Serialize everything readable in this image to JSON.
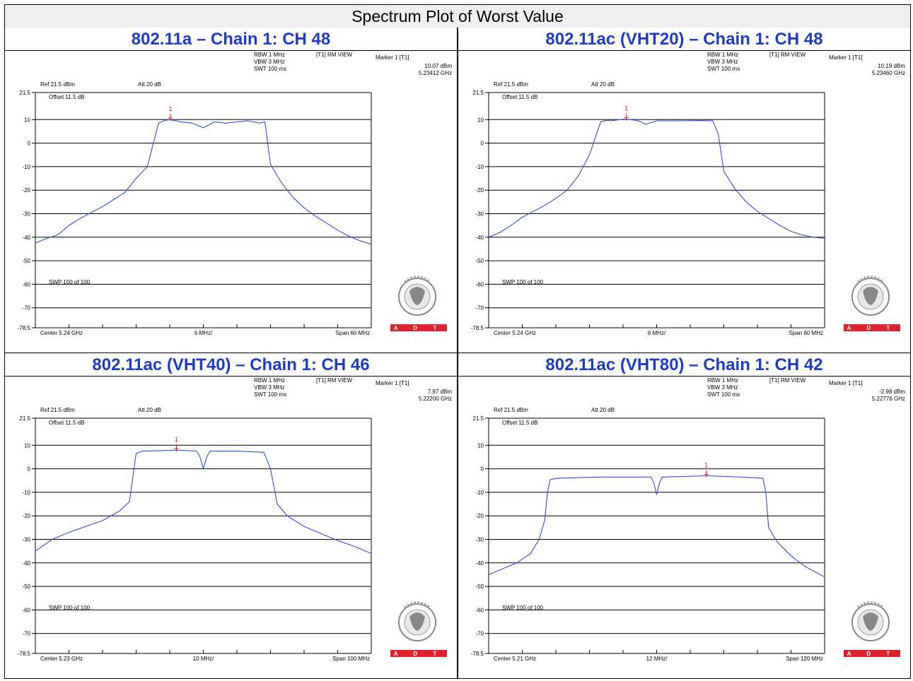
{
  "page_title": "Spectrum Plot of Worst Value",
  "logo_text": "A D T",
  "chart_data": [
    {
      "type": "line",
      "title": "802.11a – Chain 1: CH 48",
      "rbw": "RBW 1 MHz",
      "vbw": "VBW 3 MHz",
      "swt": "SWT 100 ms",
      "trace_view": "[T1] RM VIEW",
      "marker_label": "Marker 1 [T1]",
      "marker_level": "10.07 dBm",
      "marker_freq": "5.23412 GHz",
      "ref": "Ref 21.5 dBm",
      "att": "Att  20 dB",
      "offset": "Offset 11.5 dB",
      "sweep": "SWP 100 of 100",
      "center": "Center 5.24 GHz",
      "per_div": "6 MHz/",
      "span": "Span 60 MHz",
      "y_ticks": [
        "21.5",
        "10",
        "0",
        "-10",
        "-20",
        "-30",
        "-40",
        "-50",
        "-60",
        "-70",
        "-78.5"
      ],
      "ylim": [
        -78.5,
        21.5
      ],
      "x_range_mhz": [
        5210,
        5270
      ],
      "marker_x_mhz": 5234.12,
      "marker_y_dbm": 10.07,
      "marker_num": "1",
      "x_mhz": [
        5210,
        5212,
        5214,
        5216,
        5218,
        5220,
        5222,
        5224,
        5226,
        5228,
        5230,
        5232,
        5233,
        5234,
        5236,
        5238,
        5240,
        5242,
        5244,
        5246,
        5248,
        5250,
        5251,
        5252,
        5254,
        5256,
        5258,
        5260,
        5262,
        5264,
        5266,
        5268,
        5270
      ],
      "y_dbm": [
        -42.5,
        -40.5,
        -39,
        -35,
        -32,
        -29.5,
        -27,
        -24,
        -21,
        -15,
        -10,
        8.5,
        9.5,
        10.07,
        9,
        8.5,
        6.5,
        9,
        8.5,
        9,
        9.5,
        8.5,
        9,
        -9,
        -17,
        -23,
        -27.5,
        -31,
        -34,
        -37,
        -39.5,
        -41.5,
        -43
      ]
    },
    {
      "type": "line",
      "title": "802.11ac (VHT20) – Chain 1: CH 48",
      "rbw": "RBW 1 MHz",
      "vbw": "VBW 3 MHz",
      "swt": "SWT 100 ms",
      "trace_view": "[T1] RM VIEW",
      "marker_label": "Marker 1 [T1]",
      "marker_level": "10.19 dBm",
      "marker_freq": "5.23460 GHz",
      "ref": "Ref 21.5 dBm",
      "att": "Att  20 dB",
      "offset": "Offset 11.5 dB",
      "sweep": "SWP 100 of 100",
      "center": "Center 5.24 GHz",
      "per_div": "6 MHz/",
      "span": "Span 60 MHz",
      "y_ticks": [
        "21.5",
        "10",
        "0",
        "-10",
        "-20",
        "-30",
        "-40",
        "-50",
        "-60",
        "-70",
        "-78.5"
      ],
      "ylim": [
        -78.5,
        21.5
      ],
      "x_range_mhz": [
        5210,
        5270
      ],
      "marker_x_mhz": 5234.6,
      "marker_y_dbm": 10.19,
      "marker_num": "1",
      "x_mhz": [
        5210,
        5212,
        5214,
        5216,
        5218,
        5220,
        5222,
        5224,
        5226,
        5228,
        5230,
        5231,
        5232,
        5234,
        5236,
        5237,
        5238,
        5240,
        5244,
        5248,
        5250,
        5251,
        5252,
        5254,
        5256,
        5258,
        5260,
        5262,
        5264,
        5266,
        5268,
        5270
      ],
      "y_dbm": [
        -40,
        -38,
        -35,
        -31.5,
        -29,
        -26.5,
        -23.5,
        -20,
        -14,
        -5,
        9,
        9.7,
        9.5,
        10.19,
        9.8,
        9.3,
        8,
        9.5,
        9.5,
        9.6,
        9.5,
        4,
        -12,
        -19.5,
        -25,
        -29,
        -32,
        -35,
        -37.5,
        -39,
        -40,
        -40.5
      ]
    },
    {
      "type": "line",
      "title": "802.11ac (VHT40) – Chain 1: CH 46",
      "rbw": "RBW 1 MHz",
      "vbw": "VBW 3 MHz",
      "swt": "SWT 100 ms",
      "trace_view": "[T1] RM VIEW",
      "marker_label": "Marker 1 [T1]",
      "marker_level": "7.97 dBm",
      "marker_freq": "5.22200 GHz",
      "ref": "Ref 21.5 dBm",
      "att": "Att  20 dB",
      "offset": "Offset 11.5 dB",
      "sweep": "SWP 100 of 100",
      "center": "Center 5.23 GHz",
      "per_div": "10 MHz/",
      "span": "Span 100 MHz",
      "y_ticks": [
        "21.5",
        "10",
        "0",
        "-10",
        "-20",
        "-30",
        "-40",
        "-50",
        "-60",
        "-70",
        "-78.5"
      ],
      "ylim": [
        -78.5,
        21.5
      ],
      "x_range_mhz": [
        5180,
        5280
      ],
      "marker_x_mhz": 5222,
      "marker_y_dbm": 7.97,
      "marker_num": "1",
      "x_mhz": [
        5180,
        5185,
        5190,
        5195,
        5200,
        5205,
        5208,
        5210,
        5212,
        5220,
        5222,
        5228,
        5229,
        5230,
        5231,
        5232,
        5240,
        5248,
        5250,
        5252,
        5255,
        5260,
        5265,
        5270,
        5275,
        5280
      ],
      "y_dbm": [
        -35,
        -30,
        -27,
        -24.5,
        -22,
        -18,
        -14,
        6.5,
        7.5,
        7.8,
        7.97,
        7.5,
        5,
        0,
        5,
        7.5,
        7.5,
        7,
        0,
        -15,
        -20,
        -24.5,
        -27.5,
        -30.5,
        -33,
        -36
      ]
    },
    {
      "type": "line",
      "title": "802.11ac (VHT80) – Chain 1: CH 42",
      "rbw": "RBW 1 MHz",
      "vbw": "VBW 3 MHz",
      "swt": "SWT 100 ms",
      "trace_view": "[T1] RM VIEW",
      "marker_label": "Marker 1 [T1]",
      "marker_level": "-2.98 dBm",
      "marker_freq": "5.22776 GHz",
      "ref": "Ref 21.5 dBm",
      "att": "Att  20 dB",
      "offset": "Offset 11.5 dB",
      "sweep": "SWP 100 of 100",
      "center": "Center 5.21 GHz",
      "per_div": "12 MHz/",
      "span": "Span 120 MHz",
      "y_ticks": [
        "21.5",
        "10",
        "0",
        "-10",
        "-20",
        "-30",
        "-40",
        "-50",
        "-60",
        "-70",
        "-78.5"
      ],
      "ylim": [
        -78.5,
        21.5
      ],
      "x_range_mhz": [
        5150,
        5270
      ],
      "marker_x_mhz": 5227.76,
      "marker_y_dbm": -2.98,
      "marker_num": "1",
      "x_mhz": [
        5150,
        5155,
        5160,
        5165,
        5168,
        5170,
        5171,
        5172,
        5175,
        5190,
        5208,
        5209,
        5210,
        5211,
        5212,
        5228,
        5240,
        5248,
        5249,
        5250,
        5253,
        5258,
        5263,
        5270
      ],
      "y_dbm": [
        -45,
        -42.5,
        -40,
        -36,
        -30,
        -22,
        -10,
        -4.5,
        -4,
        -3.5,
        -3.5,
        -6,
        -11,
        -6,
        -3.5,
        -2.98,
        -3.5,
        -4,
        -10,
        -25,
        -31,
        -37,
        -41.5,
        -46
      ]
    }
  ]
}
